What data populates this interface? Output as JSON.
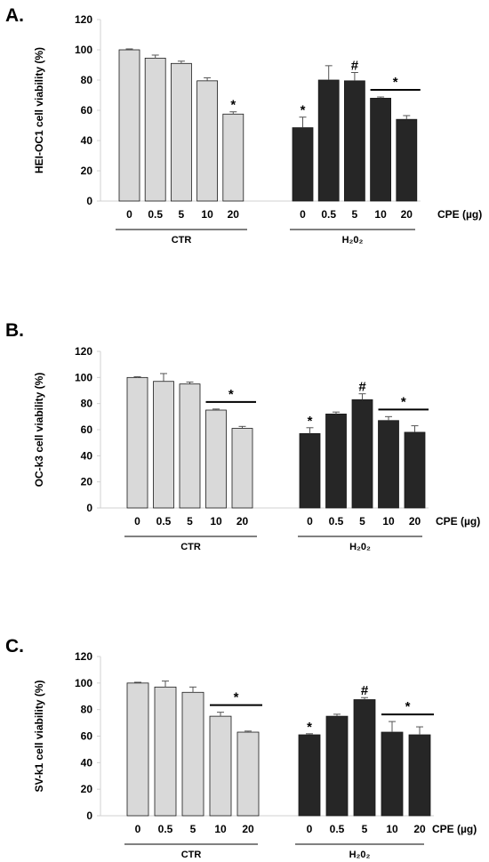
{
  "chart_data": [
    {
      "type": "bar",
      "panel": "A.",
      "ylabel": "HEI-OC1 cell viability (%)",
      "ylim": [
        0,
        120
      ],
      "yticks": [
        "0",
        "20",
        "40",
        "60",
        "80",
        "100",
        "120"
      ],
      "x_unit": "CPE (µg)",
      "groups": [
        {
          "name": "CTR",
          "color": "#d9d9d9",
          "categories": [
            "0",
            "0.5",
            "5",
            "10",
            "20"
          ],
          "values": [
            100,
            94.5,
            91,
            79.5,
            57.5
          ],
          "errors": [
            0.6,
            2,
            1.5,
            2,
            1.5
          ],
          "marks": [
            "",
            "",
            "",
            "",
            "*"
          ]
        },
        {
          "name": "H₂0₂",
          "color": "#262626",
          "categories": [
            "0",
            "0.5",
            "5",
            "10",
            "20"
          ],
          "values": [
            48.5,
            80,
            79.5,
            68,
            54
          ],
          "errors": [
            7,
            9.5,
            5.5,
            0.8,
            2.5
          ],
          "marks": [
            "*",
            "",
            "#",
            "",
            ""
          ]
        }
      ],
      "bracket": {
        "group": 1,
        "from": 3,
        "to": 4,
        "mark": "*"
      }
    },
    {
      "type": "bar",
      "panel": "B.",
      "ylabel": "OC-k3  cell viability (%)",
      "ylim": [
        0,
        120
      ],
      "yticks": [
        "0",
        "20",
        "40",
        "60",
        "80",
        "100",
        "120"
      ],
      "x_unit": "CPE (µg)",
      "groups": [
        {
          "name": "CTR",
          "color": "#d9d9d9",
          "categories": [
            "0",
            "0.5",
            "5",
            "10",
            "20"
          ],
          "values": [
            100,
            97,
            95,
            75,
            61
          ],
          "errors": [
            0.6,
            6,
            1.5,
            0.8,
            1.5
          ],
          "marks": [
            "",
            "",
            "",
            "",
            ""
          ]
        },
        {
          "name": "H₂0₂",
          "color": "#262626",
          "categories": [
            "0",
            "0.5",
            "5",
            "10",
            "20"
          ],
          "values": [
            57,
            72,
            83,
            67,
            58
          ],
          "errors": [
            4.5,
            1.5,
            4.5,
            3,
            5
          ],
          "marks": [
            "*",
            "",
            "#",
            "",
            ""
          ]
        }
      ],
      "brackets": [
        {
          "group": 0,
          "from": 3,
          "to": 4,
          "mark": "*"
        },
        {
          "group": 1,
          "from": 3,
          "to": 4,
          "mark": "*"
        }
      ]
    },
    {
      "type": "bar",
      "panel": "C.",
      "ylabel": "SV-k1 cell viability (%)",
      "ylim": [
        0,
        120
      ],
      "yticks": [
        "0",
        "20",
        "40",
        "60",
        "80",
        "100",
        "120"
      ],
      "x_unit": "CPE (µg)",
      "groups": [
        {
          "name": "CTR",
          "color": "#d9d9d9",
          "categories": [
            "0",
            "0.5",
            "5",
            "10",
            "20"
          ],
          "values": [
            100,
            97,
            93,
            75,
            63
          ],
          "errors": [
            0.6,
            4.5,
            4,
            3,
            0.8
          ],
          "marks": [
            "",
            "",
            "",
            "",
            ""
          ]
        },
        {
          "name": "H₂0₂",
          "color": "#262626",
          "categories": [
            "0",
            "0.5",
            "5",
            "10",
            "20"
          ],
          "values": [
            61,
            75,
            87.5,
            63,
            61
          ],
          "errors": [
            0.8,
            1.5,
            1.5,
            8,
            6
          ],
          "marks": [
            "*",
            "",
            "#",
            "",
            ""
          ]
        }
      ],
      "brackets": [
        {
          "group": 0,
          "from": 3,
          "to": 4,
          "mark": "*"
        },
        {
          "group": 1,
          "from": 3,
          "to": 4,
          "mark": "*"
        }
      ]
    }
  ]
}
